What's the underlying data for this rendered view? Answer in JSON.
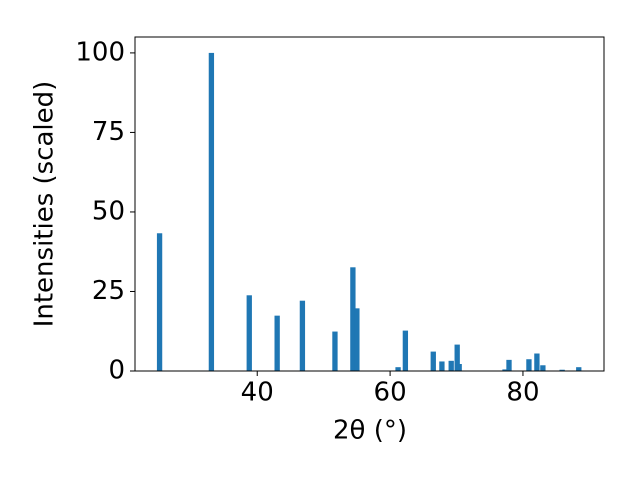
{
  "chart_data": {
    "type": "bar",
    "xlabel": "2θ (°)",
    "ylabel": "Intensities (scaled)",
    "x": [
      25.3,
      33.1,
      38.8,
      43.0,
      46.8,
      51.7,
      54.4,
      55.0,
      61.2,
      62.3,
      66.5,
      67.8,
      69.2,
      70.1,
      70.4,
      77.3,
      77.9,
      80.9,
      82.1,
      83.0,
      85.9,
      88.4
    ],
    "values": [
      43.3,
      100,
      23.8,
      17.4,
      22.1,
      12.4,
      32.6,
      19.7,
      1.2,
      12.7,
      6.1,
      3.0,
      3.2,
      8.3,
      2.2,
      0.5,
      3.5,
      3.7,
      5.5,
      1.8,
      0.4,
      1.2
    ],
    "color": "#1f77b4",
    "xlim": [
      21.6,
      92.2
    ],
    "xticks": [
      40,
      60,
      80
    ],
    "ylim": [
      0,
      105
    ],
    "yticks": [
      0,
      25,
      50,
      75,
      100
    ],
    "grid": false
  }
}
